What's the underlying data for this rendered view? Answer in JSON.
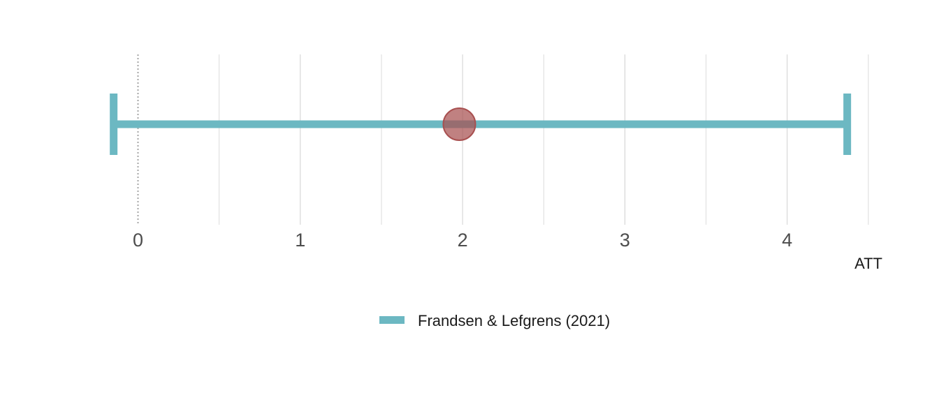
{
  "chart_data": {
    "type": "errorbar",
    "x_tick_labels": [
      "0",
      "1",
      "2",
      "3",
      "4"
    ],
    "x_ticks": [
      0,
      1,
      2,
      3,
      4
    ],
    "xlabel": "ATT",
    "xlim": [
      -0.18,
      4.5
    ],
    "reference_line_x": 0,
    "grid": true,
    "legend_position": "bottom",
    "series": [
      {
        "name": "Frandsen & Lefgrens (2021)",
        "point": 1.98,
        "ci_low": -0.15,
        "ci_high": 4.37,
        "color": "#6cb8c2",
        "point_color": "#a85050"
      }
    ]
  }
}
